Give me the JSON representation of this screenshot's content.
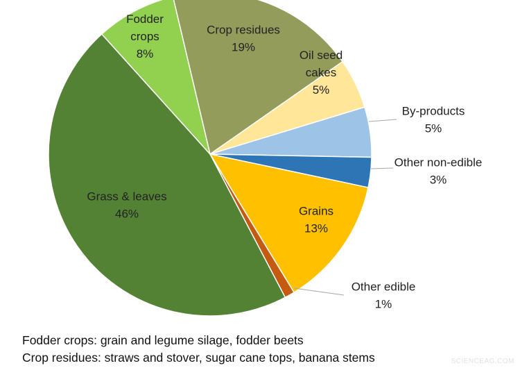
{
  "chart_data": {
    "type": "pie",
    "start_angle_deg": -13.3,
    "direction": "clockwise",
    "slices": [
      {
        "label": [
          "Crop residues"
        ],
        "pct": "19%",
        "value": 19,
        "color": "#949c5c"
      },
      {
        "label": [
          "Oil seed",
          "cakes"
        ],
        "pct": "5%",
        "value": 5,
        "color": "#ffe699"
      },
      {
        "label": [
          "By-products"
        ],
        "pct": "5%",
        "value": 5,
        "color": "#9dc3e6"
      },
      {
        "label": [
          "Other non-edible"
        ],
        "pct": "3%",
        "value": 3,
        "color": "#2e75b6"
      },
      {
        "label": [
          "Grains"
        ],
        "pct": "13%",
        "value": 13,
        "color": "#ffc000"
      },
      {
        "label": [
          "Other edible"
        ],
        "pct": "1%",
        "value": 1,
        "color": "#c55a11"
      },
      {
        "label": [
          "Grass & leaves"
        ],
        "pct": "46%",
        "value": 46,
        "color": "#548235"
      },
      {
        "label": [
          "Fodder",
          "crops"
        ],
        "pct": "8%",
        "value": 8,
        "color": "#92d050"
      }
    ]
  },
  "footnotes": [
    "Fodder crops: grain and legume silage, fodder beets",
    "Crop residues: straws and stover, sugar cane tops, banana stems"
  ],
  "watermark": "SCIENCEAG.COM"
}
